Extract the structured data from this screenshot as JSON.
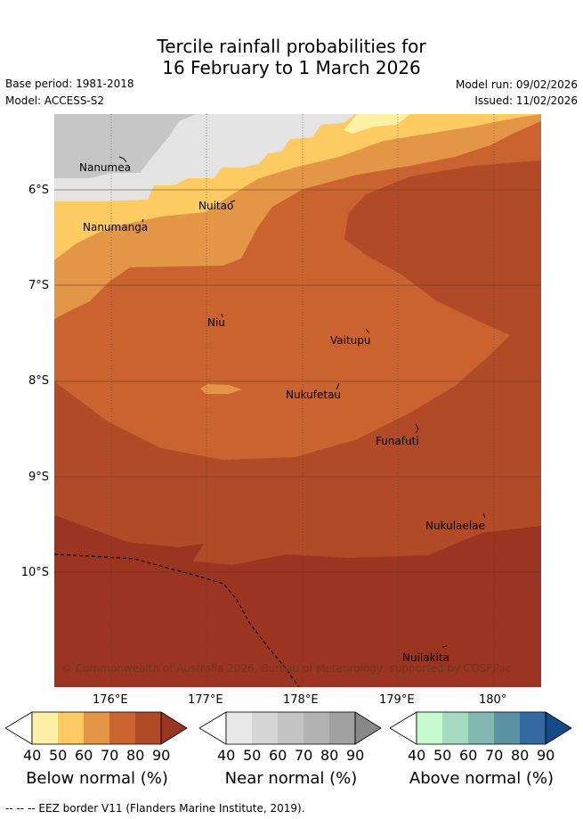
{
  "title": {
    "line1": "Tercile rainfall probabilities for",
    "line2": "16 February to 1 March 2026"
  },
  "meta": {
    "base_period": "Base period: 1981-2018",
    "model": "Model: ACCESS-S2",
    "model_run": "Model run: 09/02/2026",
    "issued": "Issued: 11/02/2026"
  },
  "map": {
    "lat_ticks": [
      "6°S",
      "7°S",
      "8°S",
      "9°S",
      "10°S"
    ],
    "lon_ticks": [
      "176°E",
      "177°E",
      "178°E",
      "179°E",
      "180°"
    ],
    "places": [
      "Nanumea",
      "Nuitao",
      "Nanumanga",
      "Niu",
      "Vaitupu",
      "Nukufetau",
      "Funafuti",
      "Nukulaelae",
      "Nuilakita"
    ],
    "copyright": "© Commonwealth of Australia 2026, Bureau of Meteorology, supported by COSPPac"
  },
  "legends": {
    "below": {
      "title": "Below normal (%)",
      "ticks": [
        "40",
        "50",
        "60",
        "70",
        "80",
        "90"
      ],
      "colors": [
        "#ffffff",
        "#fff0a8",
        "#fecb62",
        "#e39645",
        "#cb6331",
        "#b14b27",
        "#9b3421"
      ]
    },
    "near": {
      "title": "Near normal (%)",
      "ticks": [
        "40",
        "50",
        "60",
        "70",
        "80",
        "90"
      ],
      "colors": [
        "#ffffff",
        "#e8e8e8",
        "#d6d6d6",
        "#c4c4c4",
        "#b3b3b3",
        "#a0a0a0",
        "#888888"
      ]
    },
    "above": {
      "title": "Above normal (%)",
      "ticks": [
        "40",
        "50",
        "60",
        "70",
        "80",
        "90"
      ],
      "colors": [
        "#ffffff",
        "#c8fad0",
        "#a6dbc0",
        "#82b8b2",
        "#5b93a3",
        "#3468a0",
        "#144a88"
      ]
    }
  },
  "footer": "-- -- -- EEZ border V11 (Flanders Marine Institute, 2019)."
}
